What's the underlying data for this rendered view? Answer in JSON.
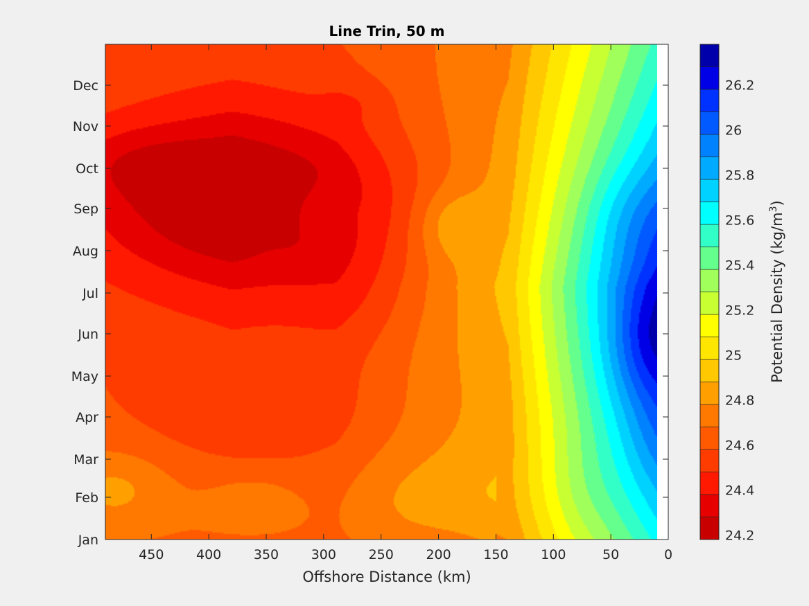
{
  "chart_data": {
    "type": "heatmap",
    "subtype": "filled-contour",
    "title": "Line Trin, 50 m",
    "xlabel": "Offshore Distance (km)",
    "x_reversed": true,
    "xlim": [
      0,
      490
    ],
    "x_ticks": [
      "450",
      "400",
      "350",
      "300",
      "250",
      "200",
      "150",
      "100",
      "50",
      "0"
    ],
    "y_categories": [
      "Jan",
      "Feb",
      "Mar",
      "Apr",
      "May",
      "Jun",
      "Jul",
      "Aug",
      "Sep",
      "Oct",
      "Nov",
      "Dec"
    ],
    "data_x_range_km": [
      12,
      490
    ],
    "colorbar": {
      "label": "Potential Density (kg/m³)",
      "label_base": "Potential Density (kg/m",
      "label_sup": "3",
      "label_end": ")",
      "range": [
        24.18,
        26.38
      ],
      "step": 0.1,
      "tick_labels": [
        "24.2",
        "24.4",
        "24.6",
        "24.8",
        "25",
        "25.2",
        "25.4",
        "25.6",
        "25.8",
        "26",
        "26.2"
      ],
      "colors": [
        "#c80000",
        "#e60000",
        "#ff1900",
        "#ff3c00",
        "#ff5a00",
        "#ff7800",
        "#ffa000",
        "#ffc800",
        "#ffe600",
        "#ffff00",
        "#c8ff32",
        "#a0ff5a",
        "#64ff8c",
        "#32ffc8",
        "#00ffff",
        "#00d2ff",
        "#00aaff",
        "#0082ff",
        "#005aff",
        "#0032ff",
        "#0000e6",
        "#0000aa"
      ]
    },
    "grid": false,
    "legend": "colorbar-right"
  }
}
